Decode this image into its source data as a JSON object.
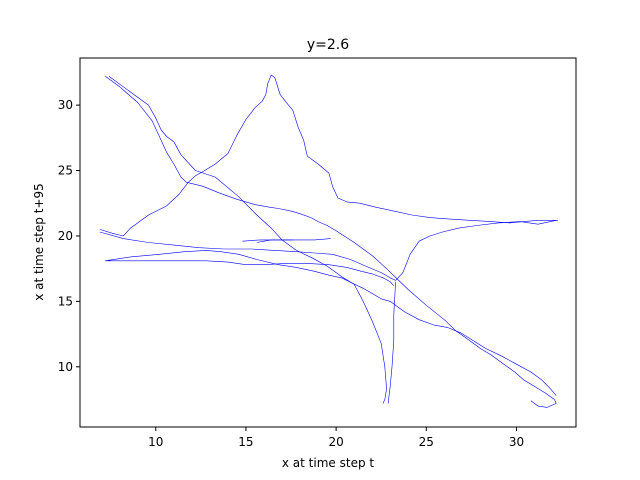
{
  "chart_data": {
    "type": "line",
    "title": "y=2.6",
    "xlabel": "x at time step t",
    "ylabel": "x at time step t+95",
    "xlim": [
      5.8,
      33.3
    ],
    "ylim": [
      5.4,
      33.6
    ],
    "xticks": [
      10,
      15,
      20,
      25,
      30
    ],
    "yticks": [
      10,
      15,
      20,
      25,
      30
    ],
    "grid": false,
    "line_color": "#0000ff",
    "series": [
      {
        "x": [
          7.2,
          8.0,
          9.0,
          9.8,
          10.2,
          10.6,
          11.0,
          11.4,
          11.7,
          12.0,
          12.6,
          13.5,
          14.5,
          15.5,
          16.3,
          16.8,
          17.5,
          18.0,
          18.6,
          19.0,
          19.5,
          20.0,
          21.0,
          22.0,
          22.8,
          23.4,
          24.0,
          25.0,
          26.0,
          26.6,
          27.2,
          28.0,
          28.6,
          29.3,
          29.9,
          30.4,
          31.0,
          31.6,
          32.1,
          32.2,
          31.7,
          31.2,
          30.8
        ],
        "y": [
          32.2,
          31.4,
          30.2,
          28.8,
          27.6,
          26.4,
          25.5,
          24.5,
          24.1,
          24.0,
          23.8,
          23.3,
          22.8,
          22.4,
          22.2,
          22.1,
          21.9,
          21.7,
          21.4,
          21.1,
          20.8,
          20.4,
          19.5,
          18.5,
          17.5,
          16.7,
          15.9,
          14.7,
          13.6,
          12.8,
          12.2,
          11.4,
          10.9,
          10.2,
          9.6,
          9.0,
          8.5,
          8.0,
          7.5,
          7.2,
          6.9,
          7.0,
          7.4
        ]
      },
      {
        "x": [
          7.4,
          8.5,
          9.6,
          10.0,
          10.3,
          10.6,
          11.0,
          11.4,
          12.2,
          13.3,
          14.6,
          15.6,
          16.4,
          17.0,
          17.8,
          18.7,
          19.5,
          20.3,
          21.0,
          21.5,
          22.0,
          22.5,
          22.7,
          22.8,
          22.7,
          22.6
        ],
        "y": [
          32.2,
          31.1,
          30.0,
          29.0,
          28.1,
          27.6,
          27.2,
          26.2,
          25.0,
          24.5,
          23.0,
          21.6,
          20.6,
          19.7,
          18.9,
          18.3,
          17.7,
          16.9,
          16.3,
          15.0,
          13.5,
          11.8,
          10.0,
          8.3,
          7.5,
          7.2
        ]
      },
      {
        "x": [
          6.9,
          7.6,
          8.2,
          8.6,
          9.6,
          10.6,
          11.3,
          11.8,
          12.2,
          12.6,
          13.3,
          14.0,
          14.5,
          15.0,
          15.5,
          15.9,
          16.1,
          16.2,
          16.4,
          16.6,
          16.9,
          17.3,
          17.6,
          17.9,
          18.2,
          18.4,
          19.0,
          19.6,
          19.8,
          20.1,
          20.6,
          21.3,
          22.2,
          23.2,
          24.2,
          25.2,
          26.2,
          27.4,
          28.6,
          29.6,
          30.4,
          31.2,
          32.3
        ],
        "y": [
          20.5,
          20.2,
          20.0,
          20.6,
          21.6,
          22.3,
          23.2,
          24.1,
          24.6,
          24.9,
          25.5,
          26.3,
          27.7,
          28.9,
          29.8,
          30.3,
          30.8,
          31.6,
          32.3,
          32.1,
          30.8,
          30.1,
          29.6,
          28.3,
          27.3,
          26.1,
          25.5,
          24.8,
          23.8,
          22.9,
          22.6,
          22.5,
          22.2,
          21.9,
          21.6,
          21.4,
          21.3,
          21.2,
          21.1,
          21.0,
          21.1,
          21.2,
          21.2
        ]
      },
      {
        "x": [
          6.9,
          8.2,
          9.6,
          11.0,
          12.4,
          13.8,
          15.3,
          16.6,
          17.8,
          18.8,
          19.8,
          20.8,
          21.8,
          22.5,
          23.0,
          23.3,
          23.7,
          24.1,
          24.6,
          25.2,
          25.9,
          26.8,
          27.8,
          29.0,
          30.2,
          31.2,
          32.2
        ],
        "y": [
          20.3,
          19.8,
          19.5,
          19.3,
          19.1,
          19.0,
          19.0,
          18.9,
          18.8,
          18.7,
          18.6,
          18.2,
          17.6,
          17.2,
          16.8,
          16.6,
          17.2,
          18.6,
          19.6,
          20.0,
          20.3,
          20.6,
          20.8,
          21.0,
          21.1,
          20.9,
          21.2
        ]
      },
      {
        "x": [
          7.2,
          8.6,
          10.2,
          11.6,
          12.8,
          13.6,
          14.6,
          15.6,
          16.8,
          17.8,
          18.8,
          19.6,
          20.3,
          20.9,
          21.5,
          22.0,
          22.5,
          23.0,
          23.4,
          23.8,
          24.6,
          25.4,
          26.2,
          26.9,
          27.6,
          28.3,
          29.2,
          30.0,
          30.8,
          31.4,
          31.9,
          32.2
        ],
        "y": [
          18.1,
          18.4,
          18.6,
          18.8,
          18.9,
          18.8,
          18.6,
          18.2,
          17.8,
          17.6,
          17.3,
          17.0,
          16.8,
          16.4,
          16.0,
          15.6,
          15.2,
          15.0,
          14.6,
          14.2,
          13.6,
          13.2,
          13.0,
          12.6,
          12.0,
          11.4,
          10.8,
          10.2,
          9.6,
          9.0,
          8.3,
          7.8
        ]
      },
      {
        "x": [
          7.2,
          9.0,
          11.0,
          12.8,
          14.0,
          15.0,
          16.0,
          17.2,
          18.4,
          19.6,
          20.6,
          21.4,
          22.0,
          22.6,
          23.0,
          23.2
        ],
        "y": [
          18.1,
          18.1,
          18.1,
          18.1,
          18.0,
          17.8,
          17.8,
          17.9,
          17.9,
          17.8,
          17.6,
          17.3,
          17.1,
          16.8,
          16.5,
          16.2
        ]
      },
      {
        "x": [
          23.3,
          23.2,
          23.2,
          23.1,
          23.0,
          22.9,
          22.9
        ],
        "y": [
          16.5,
          14.0,
          12.0,
          10.0,
          8.5,
          7.4,
          7.2
        ]
      },
      {
        "x": [
          14.8,
          15.8,
          16.8,
          17.8,
          18.8,
          19.7
        ],
        "y": [
          19.6,
          19.7,
          19.7,
          19.7,
          19.7,
          19.8
        ]
      },
      {
        "x": [
          15.6,
          16.0,
          16.4,
          16.8,
          17.2,
          17.6
        ],
        "y": [
          19.5,
          19.6,
          19.7,
          19.7,
          19.7,
          19.7
        ]
      }
    ]
  }
}
